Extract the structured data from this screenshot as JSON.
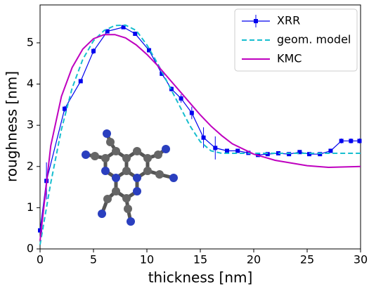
{
  "chart_data": {
    "type": "line",
    "xlabel": "thickness [nm]",
    "ylabel": "roughness [nm]",
    "xlim": [
      0,
      30
    ],
    "xticks": [
      0,
      5,
      10,
      15,
      20,
      25,
      30
    ],
    "ylim": [
      0,
      5.92
    ],
    "yticks": [
      0,
      1,
      2,
      3,
      4,
      5
    ],
    "legend": "upper right",
    "series": [
      {
        "name": "XRR",
        "color": "#0000ee",
        "style": "markers-line",
        "x": [
          0,
          0.6,
          2.3,
          3.8,
          5,
          6.3,
          7.8,
          8.9,
          10.2,
          11.4,
          12.3,
          13.2,
          14.2,
          15.3,
          16.4,
          17.5,
          18.5,
          19.5,
          20.4,
          21.3,
          22.3,
          23.3,
          24.3,
          25.2,
          26.2,
          27.2,
          28.2,
          29.1,
          29.9
        ],
        "values": [
          0.45,
          1.65,
          3.4,
          4.07,
          4.8,
          5.28,
          5.38,
          5.22,
          4.82,
          4.25,
          3.88,
          3.65,
          3.3,
          2.7,
          2.45,
          2.38,
          2.38,
          2.33,
          2.28,
          2.3,
          2.32,
          2.3,
          2.35,
          2.3,
          2.3,
          2.38,
          2.62,
          2.62,
          2.62
        ],
        "errors": [
          0.03,
          0.45,
          0.07,
          0.04,
          0.07,
          0.04,
          0.04,
          0.05,
          0.05,
          0.05,
          0.06,
          0.1,
          0.15,
          0.25,
          0.28,
          0.04,
          0.03,
          0.03,
          0.03,
          0.03,
          0.03,
          0.03,
          0.03,
          0.03,
          0.03,
          0.03,
          0.06,
          0.06,
          0.06
        ]
      },
      {
        "name": "geom. model",
        "color": "#17becf",
        "style": "dashed",
        "x": [
          0,
          1,
          2,
          3,
          4,
          5,
          6,
          7,
          8,
          9,
          10,
          11,
          12,
          13,
          14,
          15,
          16,
          17,
          18,
          20,
          22,
          25,
          30
        ],
        "values": [
          0.1,
          1.6,
          2.9,
          3.9,
          4.6,
          5.05,
          5.3,
          5.42,
          5.43,
          5.3,
          4.95,
          4.5,
          4.0,
          3.5,
          3.0,
          2.6,
          2.38,
          2.32,
          2.32,
          2.32,
          2.32,
          2.32,
          2.32
        ]
      },
      {
        "name": "KMC",
        "color": "#bf00bf",
        "style": "solid",
        "x": [
          0,
          1,
          2,
          3,
          4,
          5,
          6,
          7,
          8,
          9,
          10,
          11,
          12,
          13,
          14,
          15,
          16,
          17,
          18,
          20,
          22,
          25,
          27,
          30
        ],
        "values": [
          0.2,
          2.5,
          3.7,
          4.4,
          4.85,
          5.1,
          5.2,
          5.2,
          5.12,
          4.95,
          4.72,
          4.45,
          4.15,
          3.85,
          3.55,
          3.25,
          2.98,
          2.75,
          2.55,
          2.3,
          2.15,
          2.02,
          1.98,
          2.0
        ]
      }
    ]
  }
}
